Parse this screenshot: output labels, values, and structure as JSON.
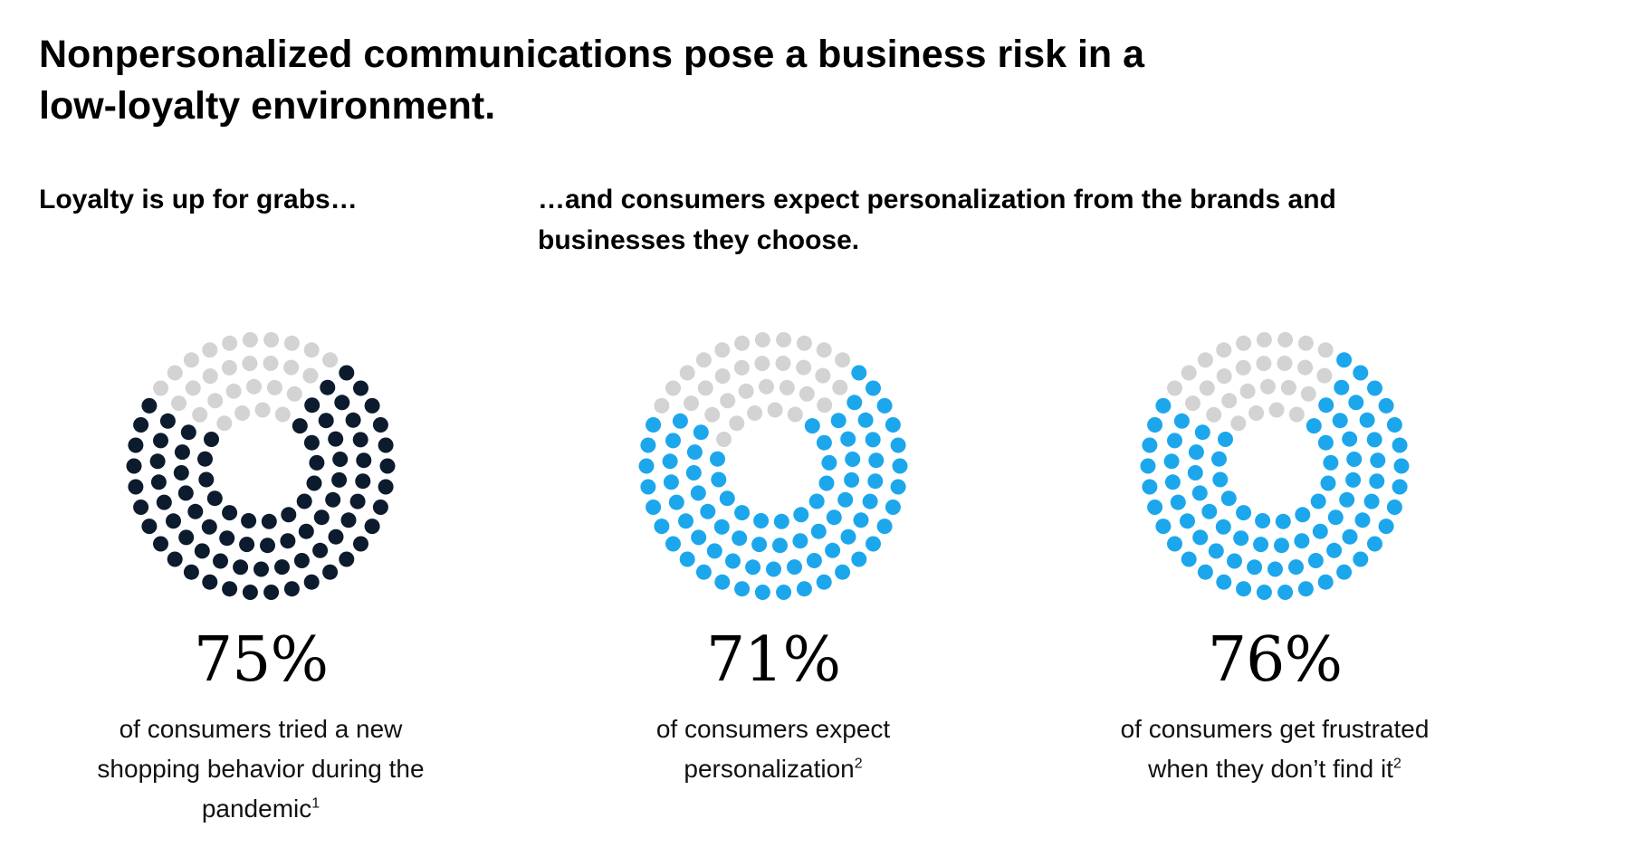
{
  "title": "Nonpersonalized communications pose a business risk in a low-loyalty environment.",
  "subheads": {
    "left": "Loyalty is up for grabs…",
    "right": "…and consumers expect personalization from the brands and businesses they choose."
  },
  "colors": {
    "gray": "#d3d3d3",
    "navy": "#0c1b2e",
    "blue": "#1ca7ec"
  },
  "chart_data": [
    {
      "type": "pie",
      "value": 75,
      "unit": "%",
      "label": "75%",
      "description": "of consumers tried a new shopping behavior during the pandemic",
      "footnote": "1",
      "fill_color": "#0c1b2e"
    },
    {
      "type": "pie",
      "value": 71,
      "unit": "%",
      "label": "71%",
      "description": "of consumers expect personalization",
      "footnote": "2",
      "fill_color": "#1ca7ec"
    },
    {
      "type": "pie",
      "value": 76,
      "unit": "%",
      "label": "76%",
      "description": "of consumers get frustrated when they don’t find it",
      "footnote": "2",
      "fill_color": "#1ca7ec"
    }
  ]
}
